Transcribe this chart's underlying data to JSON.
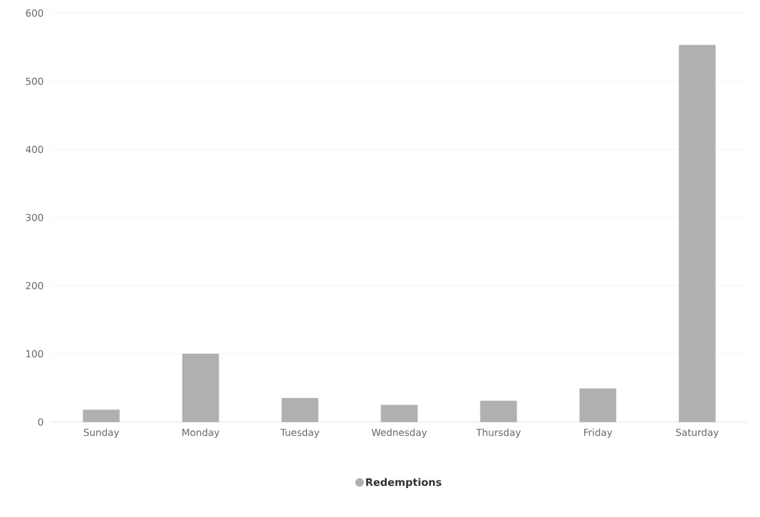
{
  "chart_data": {
    "type": "bar",
    "categories": [
      "Sunday",
      "Monday",
      "Tuesday",
      "Wednesday",
      "Thursday",
      "Friday",
      "Saturday"
    ],
    "series": [
      {
        "name": "Redemptions",
        "color": "#b0b0b0",
        "values": [
          18,
          100,
          35,
          25,
          31,
          49,
          553
        ]
      }
    ],
    "ylim": [
      0,
      600
    ],
    "yticks": [
      0,
      100,
      200,
      300,
      400,
      500,
      600
    ],
    "grid": "y",
    "legend": "bottom"
  }
}
